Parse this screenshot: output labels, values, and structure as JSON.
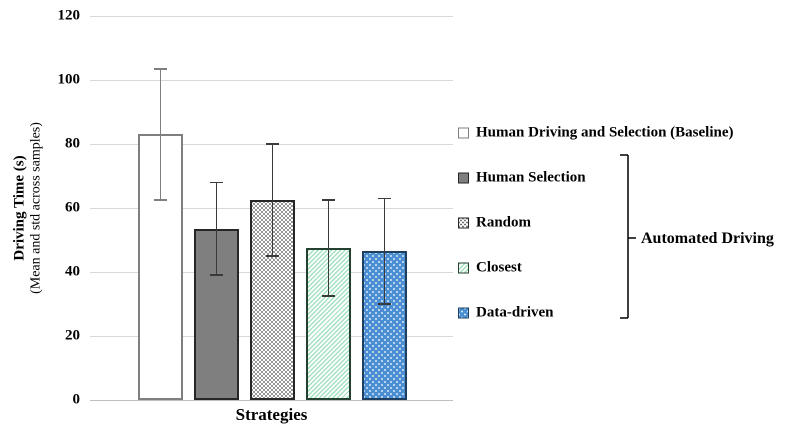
{
  "chart_data": {
    "type": "bar",
    "title": "",
    "xlabel": "Strategies",
    "ylabel": "Driving Time (s)",
    "ylabel_sub": "(Mean and std across samples)",
    "ylim": [
      0,
      120
    ],
    "yticks": [
      0,
      20,
      40,
      60,
      80,
      100,
      120
    ],
    "grid": true,
    "legend_position": "right",
    "categories": [
      "Human Driving and Selection (Baseline)",
      "Human Selection",
      "Random",
      "Closest",
      "Data-driven"
    ],
    "bars": [
      {
        "label": "Human Driving and Selection (Baseline)",
        "mean": 83,
        "std": 20.5,
        "err_low": 62.5,
        "err_high": 103.5,
        "fill": "white",
        "border": "#7f7f7f",
        "err_color": "#7f7f7f"
      },
      {
        "label": "Human Selection",
        "mean": 53.5,
        "std": 14.5,
        "err_low": 39,
        "err_high": 68,
        "fill": "gray",
        "border": "#262626",
        "err_color": "#3a3a3a"
      },
      {
        "label": "Random",
        "mean": 62.5,
        "std": 17.5,
        "err_low": 45,
        "err_high": 80,
        "fill": "dotted",
        "border": "#262626",
        "err_color": "#3a3a3a"
      },
      {
        "label": "Closest",
        "mean": 47.5,
        "std": 15,
        "err_low": 32.5,
        "err_high": 62.5,
        "fill": "green",
        "border": "#24402f",
        "err_color": "#3a3a3a"
      },
      {
        "label": "Data-driven",
        "mean": 46.5,
        "std": 16.5,
        "err_low": 30,
        "err_high": 63,
        "fill": "blue",
        "border": "#1e3f5f",
        "err_color": "#3a3a3a"
      }
    ],
    "annotation": {
      "bracket_label": "Automated Driving",
      "bracket_covers": [
        "Human Selection",
        "Random",
        "Closest",
        "Data-driven"
      ]
    }
  },
  "colors": {
    "grid": "#d9d9d9",
    "axis": "#bfbfbf",
    "gray_fill": "#7f7f7f",
    "dot_fill": "#737373",
    "green_hatch": "#a3e2c1",
    "blue_fill": "#4b8fd2",
    "blue_dot": "#d9e8f7",
    "text": "#000000"
  }
}
